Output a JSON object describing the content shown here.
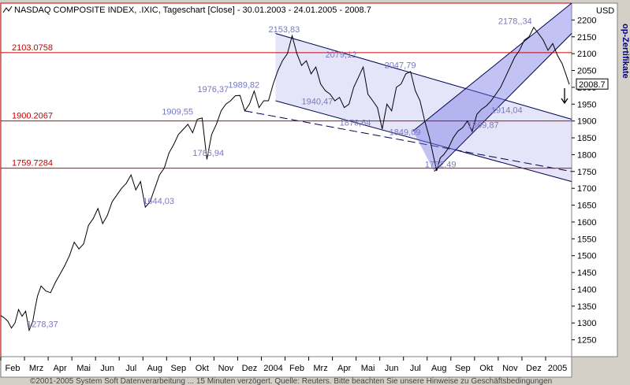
{
  "chart_data": {
    "type": "line",
    "title": "NASDAQ COMPOSITE INDEX, .IXIC, Tageschart [Close] - 30.01.2003 - 24.01.2005 - 2008.7",
    "currency": "USD",
    "side_label": "op-Zertifikate",
    "footer": "©2001-2005 System Soft Datenverarbeitung ... 15 Minuten verzögert. Quelle: Reuters. Bitte beachten Sie unsere Hinweise zu Geschäftsbedingungen",
    "last_value_label": "2008.7",
    "ylim": [
      1200,
      2250
    ],
    "yticks": [
      1250,
      1300,
      1350,
      1400,
      1450,
      1500,
      1550,
      1600,
      1650,
      1700,
      1750,
      1800,
      1850,
      1900,
      1950,
      2000,
      2050,
      2100,
      2150,
      2200
    ],
    "xlim": [
      0,
      24.1
    ],
    "months": [
      {
        "label": "Feb",
        "x": 0.5
      },
      {
        "label": "Mrz",
        "x": 1.5
      },
      {
        "label": "Apr",
        "x": 2.5
      },
      {
        "label": "Mai",
        "x": 3.5
      },
      {
        "label": "Jun",
        "x": 4.5
      },
      {
        "label": "Jul",
        "x": 5.5
      },
      {
        "label": "Aug",
        "x": 6.5
      },
      {
        "label": "Sep",
        "x": 7.5
      },
      {
        "label": "Okt",
        "x": 8.5
      },
      {
        "label": "Nov",
        "x": 9.5
      },
      {
        "label": "Dez",
        "x": 10.5
      },
      {
        "label": "2004",
        "x": 11.5
      },
      {
        "label": "Feb",
        "x": 12.5
      },
      {
        "label": "Mrz",
        "x": 13.5
      },
      {
        "label": "Apr",
        "x": 14.5
      },
      {
        "label": "Mai",
        "x": 15.5
      },
      {
        "label": "Jun",
        "x": 16.5
      },
      {
        "label": "Jul",
        "x": 17.5
      },
      {
        "label": "Aug",
        "x": 18.5
      },
      {
        "label": "Sep",
        "x": 19.5
      },
      {
        "label": "Okt",
        "x": 20.5
      },
      {
        "label": "Nov",
        "x": 21.5
      },
      {
        "label": "Dez",
        "x": 22.5
      },
      {
        "label": "2005",
        "x": 23.5
      }
    ],
    "series": [
      {
        "color": "#000000",
        "x": [
          0,
          0.15,
          0.3,
          0.45,
          0.6,
          0.75,
          0.9,
          1.05,
          1.2,
          1.35,
          1.45,
          1.55,
          1.7,
          1.9,
          2.1,
          2.3,
          2.5,
          2.7,
          2.9,
          3.1,
          3.3,
          3.5,
          3.7,
          3.9,
          4.1,
          4.3,
          4.5,
          4.7,
          4.9,
          5.1,
          5.3,
          5.5,
          5.7,
          5.9,
          6.1,
          6.3,
          6.5,
          6.7,
          6.9,
          7.1,
          7.3,
          7.5,
          7.7,
          7.9,
          8.1,
          8.3,
          8.5,
          8.7,
          8.9,
          9.1,
          9.3,
          9.5,
          9.7,
          9.9,
          10.1,
          10.3,
          10.5,
          10.7,
          10.9,
          11.1,
          11.3,
          11.5,
          11.7,
          11.9,
          12.1,
          12.3,
          12.5,
          12.7,
          12.9,
          13.1,
          13.3,
          13.5,
          13.7,
          13.9,
          14.1,
          14.3,
          14.5,
          14.7,
          14.9,
          15.1,
          15.3,
          15.5,
          15.7,
          15.9,
          16.1,
          16.3,
          16.5,
          16.7,
          16.9,
          17.1,
          17.3,
          17.5,
          17.7,
          17.9,
          18.1,
          18.25,
          18.4,
          18.55,
          18.7,
          18.9,
          19.1,
          19.3,
          19.5,
          19.7,
          19.9,
          20.1,
          20.3,
          20.5,
          20.7,
          20.9,
          21.1,
          21.3,
          21.5,
          21.7,
          21.9,
          22.1,
          22.3,
          22.5,
          22.7,
          22.9,
          23.1,
          23.3,
          23.5,
          23.7,
          23.85,
          24.0
        ],
        "values": [
          1322,
          1315,
          1305,
          1285,
          1300,
          1340,
          1320,
          1335,
          1278,
          1305,
          1345,
          1380,
          1410,
          1395,
          1390,
          1420,
          1445,
          1470,
          1500,
          1540,
          1520,
          1535,
          1590,
          1610,
          1640,
          1595,
          1620,
          1660,
          1680,
          1700,
          1715,
          1740,
          1695,
          1720,
          1644,
          1660,
          1700,
          1740,
          1760,
          1805,
          1830,
          1860,
          1875,
          1890,
          1865,
          1905,
          1909,
          1786,
          1860,
          1890,
          1930,
          1950,
          1960,
          1975,
          1976,
          1930,
          1950,
          1989,
          1940,
          1960,
          1960,
          2010,
          2050,
          2080,
          2100,
          2153,
          2100,
          2065,
          2079,
          2040,
          2060,
          2010,
          1990,
          1980,
          1960,
          1970,
          1940,
          1950,
          2000,
          2030,
          2060,
          1980,
          1960,
          1940,
          1876,
          1950,
          1930,
          2000,
          2010,
          2040,
          2047,
          1990,
          1960,
          1900,
          1849,
          1800,
          1752,
          1790,
          1800,
          1820,
          1850,
          1870,
          1880,
          1900,
          1869,
          1920,
          1935,
          1945,
          1960,
          1980,
          2000,
          2030,
          2060,
          2090,
          2110,
          2140,
          2150,
          2178,
          2160,
          2140,
          2110,
          2130,
          2095,
          2070,
          2040,
          2008.7
        ]
      }
    ],
    "hlines": [
      {
        "value": 2103.0758,
        "label": "2103.0758"
      },
      {
        "value": 1900.2067,
        "label": "1900.2067"
      },
      {
        "value": 1759.7284,
        "label": "1759.7284"
      }
    ],
    "channels": [
      {
        "kind": "down",
        "upper": [
          [
            11.6,
            2160
          ],
          [
            24.1,
            1905
          ]
        ],
        "lower": [
          [
            11.6,
            1960
          ],
          [
            24.1,
            1720
          ]
        ],
        "dashed": [
          [
            10.3,
            1930
          ],
          [
            24.1,
            1750
          ]
        ]
      },
      {
        "kind": "up",
        "upper": [
          [
            17.4,
            1870
          ],
          [
            24.1,
            2250
          ]
        ],
        "lower": [
          [
            18.3,
            1750
          ],
          [
            24.1,
            2160
          ]
        ]
      }
    ],
    "annotations": [
      {
        "label": "2153,83",
        "x": 11.3,
        "y": 2153.83
      },
      {
        "label": "2079,12",
        "x": 13.7,
        "y": 2079.12
      },
      {
        "label": "2047,79",
        "x": 16.2,
        "y": 2047.79
      },
      {
        "label": "2178,,34",
        "x": 21.0,
        "y": 2178.34
      },
      {
        "label": "1989,82",
        "x": 9.6,
        "y": 1989.82
      },
      {
        "label": "1976,37",
        "x": 8.3,
        "y": 1976.37
      },
      {
        "label": "1909,55",
        "x": 6.8,
        "y": 1909.55
      },
      {
        "label": "1940,47",
        "x": 12.7,
        "y": 1940.47
      },
      {
        "label": "1876,64",
        "x": 14.3,
        "y": 1876.64
      },
      {
        "label": "1849,09",
        "x": 16.4,
        "y": 1849.09
      },
      {
        "label": "1914,04",
        "x": 20.7,
        "y": 1914.04
      },
      {
        "label": "1869,87",
        "x": 19.7,
        "y": 1869.87
      },
      {
        "label": "1786,94",
        "x": 8.1,
        "y": 1786.94
      },
      {
        "label": "1752,49",
        "x": 17.9,
        "y": 1752.49
      },
      {
        "label": "1644,03",
        "x": 6.0,
        "y": 1644.03
      },
      {
        "label": "1278,37",
        "x": 1.1,
        "y": 1278.37
      }
    ]
  }
}
